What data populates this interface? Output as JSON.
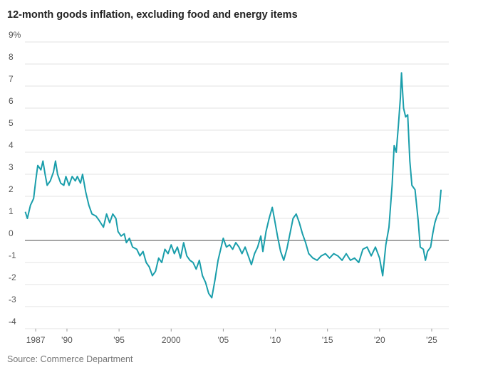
{
  "chart_data": {
    "type": "line",
    "title": "12-month goods inflation, excluding food and energy items",
    "source": "Source: Commerce Department",
    "color": "#1a9eab",
    "grid": true,
    "zero_line": true,
    "xlim": [
      1985.9,
      2026.3
    ],
    "xticks": [
      1987,
      {
        "value": 1990,
        "label": "'90"
      },
      {
        "value": 1995,
        "label": "'95"
      },
      2000,
      {
        "value": 2005,
        "label": "'05"
      },
      {
        "value": 2010,
        "label": "'10"
      },
      {
        "value": 2015,
        "label": "'15"
      },
      {
        "value": 2020,
        "label": "'20"
      },
      {
        "value": 2025,
        "label": "'25"
      }
    ],
    "ylim": [
      -4,
      9
    ],
    "yticks": [
      {
        "value": 9,
        "label": "9%"
      },
      8,
      7,
      6,
      5,
      4,
      3,
      2,
      1,
      0,
      -1,
      -2,
      -3,
      -4
    ],
    "x": [
      1986.0,
      1986.2,
      1986.5,
      1986.8,
      1987.0,
      1987.2,
      1987.5,
      1987.7,
      1987.9,
      1988.1,
      1988.4,
      1988.7,
      1988.9,
      1989.1,
      1989.4,
      1989.7,
      1989.9,
      1990.2,
      1990.5,
      1990.8,
      1991.0,
      1991.3,
      1991.5,
      1991.8,
      1992.1,
      1992.4,
      1992.8,
      1993.1,
      1993.5,
      1993.8,
      1994.1,
      1994.4,
      1994.7,
      1994.9,
      1995.2,
      1995.5,
      1995.7,
      1996.0,
      1996.3,
      1996.7,
      1997.0,
      1997.3,
      1997.6,
      1997.9,
      1998.2,
      1998.5,
      1998.8,
      1999.1,
      1999.4,
      1999.7,
      2000.0,
      2000.3,
      2000.6,
      2000.9,
      2001.2,
      2001.5,
      2001.8,
      2002.1,
      2002.4,
      2002.7,
      2003.0,
      2003.3,
      2003.6,
      2003.9,
      2004.2,
      2004.5,
      2004.8,
      2005.0,
      2005.3,
      2005.6,
      2005.9,
      2006.2,
      2006.5,
      2006.8,
      2007.1,
      2007.4,
      2007.7,
      2008.0,
      2008.3,
      2008.6,
      2008.8,
      2009.1,
      2009.4,
      2009.7,
      2009.9,
      2010.2,
      2010.5,
      2010.8,
      2011.1,
      2011.4,
      2011.7,
      2012.0,
      2012.3,
      2012.6,
      2012.9,
      2013.2,
      2013.6,
      2014.0,
      2014.4,
      2014.8,
      2015.2,
      2015.6,
      2016.0,
      2016.4,
      2016.8,
      2017.2,
      2017.6,
      2018.0,
      2018.4,
      2018.8,
      2019.2,
      2019.6,
      2020.0,
      2020.3,
      2020.6,
      2020.9,
      2021.2,
      2021.4,
      2021.6,
      2021.8,
      2022.0,
      2022.1,
      2022.3,
      2022.5,
      2022.7,
      2022.9,
      2023.1,
      2023.4,
      2023.7,
      2023.9,
      2024.2,
      2024.4,
      2024.6,
      2024.9,
      2025.1,
      2025.3,
      2025.5,
      2025.7,
      2025.9
    ],
    "values": [
      1.3,
      1.0,
      1.6,
      1.9,
      2.7,
      3.4,
      3.2,
      3.6,
      3.0,
      2.5,
      2.7,
      3.1,
      3.6,
      3.0,
      2.6,
      2.5,
      2.9,
      2.5,
      2.9,
      2.7,
      2.9,
      2.6,
      3.0,
      2.2,
      1.6,
      1.2,
      1.1,
      0.9,
      0.6,
      1.2,
      0.8,
      1.2,
      1.0,
      0.4,
      0.2,
      0.3,
      -0.1,
      0.1,
      -0.3,
      -0.4,
      -0.7,
      -0.5,
      -1.0,
      -1.2,
      -1.6,
      -1.4,
      -0.8,
      -1.0,
      -0.4,
      -0.6,
      -0.2,
      -0.6,
      -0.3,
      -0.8,
      -0.1,
      -0.7,
      -0.9,
      -1.0,
      -1.3,
      -0.9,
      -1.6,
      -1.9,
      -2.4,
      -2.6,
      -1.8,
      -0.9,
      -0.3,
      0.1,
      -0.3,
      -0.2,
      -0.4,
      -0.1,
      -0.3,
      -0.6,
      -0.3,
      -0.7,
      -1.1,
      -0.6,
      -0.3,
      0.2,
      -0.5,
      0.4,
      1.0,
      1.5,
      1.0,
      0.2,
      -0.5,
      -0.9,
      -0.4,
      0.3,
      1.0,
      1.2,
      0.8,
      0.3,
      -0.1,
      -0.6,
      -0.8,
      -0.9,
      -0.7,
      -0.6,
      -0.8,
      -0.6,
      -0.7,
      -0.9,
      -0.6,
      -0.9,
      -0.8,
      -1.0,
      -0.4,
      -0.3,
      -0.7,
      -0.3,
      -0.8,
      -1.6,
      -0.2,
      0.6,
      2.5,
      4.3,
      4.0,
      5.2,
      6.5,
      7.6,
      6.0,
      5.6,
      5.7,
      3.6,
      2.5,
      2.3,
      0.9,
      -0.3,
      -0.4,
      -0.9,
      -0.5,
      -0.3,
      0.3,
      0.8,
      1.1,
      1.3,
      2.3
    ]
  }
}
